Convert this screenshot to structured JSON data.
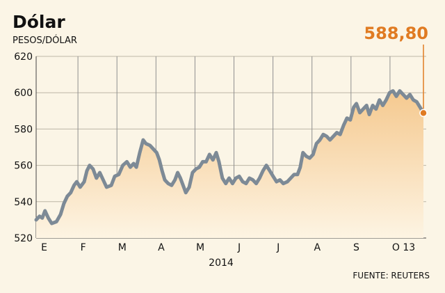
{
  "chart_data": {
    "type": "line",
    "title": "Dólar",
    "ylabel": "PESOS/DÓLAR",
    "xlabel": "2014",
    "source": "FUENTE: REUTERS",
    "last_value_label": "588,80",
    "ylim": [
      520,
      620
    ],
    "yticks": [
      "520",
      "540",
      "560",
      "580",
      "600",
      "620"
    ],
    "month_labels": [
      "E",
      "F",
      "M",
      "A",
      "M",
      "J",
      "J",
      "A",
      "S",
      "O 13"
    ],
    "grid": "vertical month dividers",
    "colors": {
      "line": "#7d8a96",
      "fill_top": "#f5c98f",
      "fill_bottom": "#fdf4e3",
      "marker": "#e07b22",
      "highlight": "#e07b22"
    },
    "series": [
      {
        "values": [
          [
            0.0,
            530
          ],
          [
            0.5,
            532
          ],
          [
            0.9,
            531
          ],
          [
            1.3,
            535
          ],
          [
            1.8,
            531
          ],
          [
            2.3,
            528
          ],
          [
            3.0,
            529
          ],
          [
            3.6,
            533
          ],
          [
            4.1,
            539
          ],
          [
            4.6,
            543
          ],
          [
            5.1,
            545
          ],
          [
            5.6,
            549
          ],
          [
            6.0,
            551
          ],
          [
            6.5,
            548
          ],
          [
            7.1,
            551
          ],
          [
            7.5,
            557
          ],
          [
            7.9,
            560
          ],
          [
            8.4,
            558
          ],
          [
            8.9,
            553
          ],
          [
            9.4,
            556
          ],
          [
            9.9,
            552
          ],
          [
            10.4,
            548
          ],
          [
            11.1,
            549
          ],
          [
            11.6,
            554
          ],
          [
            12.2,
            555
          ],
          [
            12.8,
            560
          ],
          [
            13.4,
            562
          ],
          [
            13.9,
            559
          ],
          [
            14.4,
            561
          ],
          [
            14.8,
            559
          ],
          [
            15.3,
            567
          ],
          [
            15.8,
            574
          ],
          [
            16.2,
            572
          ],
          [
            16.8,
            571
          ],
          [
            17.3,
            569
          ],
          [
            17.8,
            567
          ],
          [
            18.2,
            563
          ],
          [
            18.6,
            557
          ],
          [
            19.0,
            552
          ],
          [
            19.5,
            550
          ],
          [
            20.0,
            549
          ],
          [
            20.5,
            552
          ],
          [
            20.9,
            556
          ],
          [
            21.3,
            553
          ],
          [
            21.7,
            549
          ],
          [
            22.1,
            545
          ],
          [
            22.6,
            548
          ],
          [
            23.1,
            556
          ],
          [
            23.6,
            558
          ],
          [
            24.1,
            559
          ],
          [
            24.6,
            562
          ],
          [
            25.1,
            562
          ],
          [
            25.6,
            566
          ],
          [
            26.1,
            563
          ],
          [
            26.6,
            567
          ],
          [
            27.0,
            562
          ],
          [
            27.5,
            553
          ],
          [
            28.0,
            550
          ],
          [
            28.5,
            553
          ],
          [
            29.0,
            550
          ],
          [
            29.5,
            553
          ],
          [
            30.0,
            554
          ],
          [
            30.5,
            551
          ],
          [
            31.0,
            550
          ],
          [
            31.5,
            553
          ],
          [
            32.0,
            552
          ],
          [
            32.5,
            550
          ],
          [
            33.0,
            553
          ],
          [
            33.5,
            557
          ],
          [
            34.0,
            560
          ],
          [
            34.5,
            557
          ],
          [
            35.0,
            554
          ],
          [
            35.5,
            551
          ],
          [
            36.0,
            552
          ],
          [
            36.5,
            550
          ],
          [
            37.1,
            551
          ],
          [
            37.6,
            553
          ],
          [
            38.1,
            555
          ],
          [
            38.6,
            555
          ],
          [
            39.0,
            559
          ],
          [
            39.4,
            567
          ],
          [
            39.9,
            565
          ],
          [
            40.4,
            564
          ],
          [
            40.9,
            566
          ],
          [
            41.4,
            572
          ],
          [
            41.9,
            574
          ],
          [
            42.4,
            577
          ],
          [
            42.9,
            576
          ],
          [
            43.4,
            574
          ],
          [
            43.9,
            576
          ],
          [
            44.4,
            578
          ],
          [
            44.9,
            577
          ],
          [
            45.4,
            582
          ],
          [
            45.9,
            586
          ],
          [
            46.4,
            585
          ],
          [
            46.9,
            592
          ],
          [
            47.3,
            594
          ],
          [
            47.8,
            589
          ],
          [
            48.3,
            591
          ],
          [
            48.8,
            593
          ],
          [
            49.2,
            588
          ],
          [
            49.7,
            593
          ],
          [
            50.2,
            591
          ],
          [
            50.7,
            596
          ],
          [
            51.2,
            593
          ],
          [
            51.7,
            596
          ],
          [
            52.2,
            600
          ],
          [
            52.7,
            601
          ],
          [
            53.2,
            598
          ],
          [
            53.7,
            601
          ],
          [
            54.2,
            599
          ],
          [
            54.7,
            597
          ],
          [
            55.2,
            599
          ],
          [
            55.7,
            596
          ],
          [
            56.2,
            595
          ],
          [
            56.7,
            592
          ],
          [
            57.2,
            588.8
          ]
        ]
      }
    ]
  }
}
